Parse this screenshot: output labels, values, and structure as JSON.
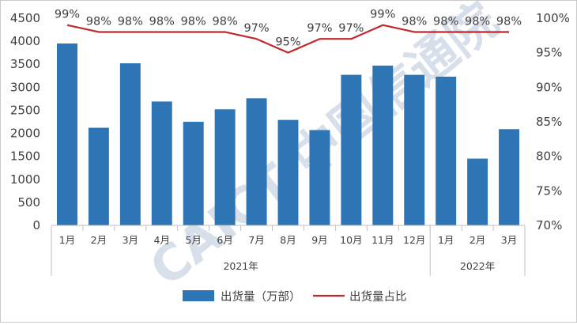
{
  "chart_data": {
    "type": "bar+line",
    "categories": [
      "1月",
      "2月",
      "3月",
      "4月",
      "5月",
      "6月",
      "7月",
      "8月",
      "9月",
      "10月",
      "11月",
      "12月",
      "1月",
      "2月",
      "3月"
    ],
    "groups": [
      {
        "label": "2021年",
        "from": 0,
        "to": 11
      },
      {
        "label": "2022年",
        "from": 12,
        "to": 14
      }
    ],
    "series": [
      {
        "name": "出货量（万部）",
        "type": "bar",
        "axis": "left",
        "color": "#2e75b6",
        "values": [
          3950,
          2120,
          3520,
          2690,
          2250,
          2520,
          2760,
          2290,
          2070,
          3270,
          3470,
          3270,
          3230,
          1450,
          2090
        ]
      },
      {
        "name": "出货量占比",
        "type": "line",
        "axis": "right",
        "color": "#c0282d",
        "values": [
          99,
          98,
          98,
          98,
          98,
          98,
          97,
          95,
          97,
          97,
          99,
          98,
          98,
          98,
          98
        ],
        "data_labels": [
          "99%",
          "98%",
          "98%",
          "98%",
          "98%",
          "98%",
          "97%",
          "95%",
          "97%",
          "97%",
          "99%",
          "98%",
          "98%",
          "98%",
          "98%"
        ]
      }
    ],
    "y_left": {
      "min": 0,
      "max": 4500,
      "ticks": [
        0,
        500,
        1000,
        1500,
        2000,
        2500,
        3000,
        3500,
        4000,
        4500
      ]
    },
    "y_right": {
      "min": 70,
      "max": 100,
      "ticks": [
        "70%",
        "75%",
        "80%",
        "85%",
        "90%",
        "95%",
        "100%"
      ]
    },
    "grid": false,
    "legend_position": "bottom",
    "watermark": "CAICT 中国信通院"
  }
}
